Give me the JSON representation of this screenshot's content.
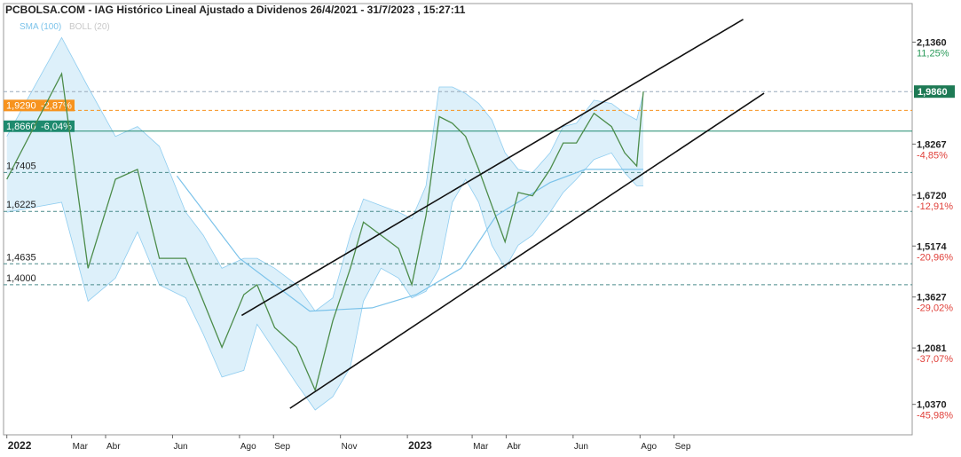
{
  "chart_data": {
    "type": "line",
    "title": "PCBOLSA.COM - IAG Histórico Lineal Ajustado a Dividenos 26/4/2021 - 31/7/2023 , 15:27:11",
    "x": [
      0,
      50,
      74,
      99,
      119,
      139,
      163,
      179,
      196,
      216,
      228,
      244,
      264,
      281,
      297,
      313,
      325,
      341,
      357,
      369,
      382,
      394,
      406,
      418,
      430,
      442,
      454,
      466,
      479,
      495,
      507,
      519,
      535,
      551,
      563,
      574,
      580
    ],
    "series": [
      {
        "color": "#4c8c4a",
        "values": [
          1.72,
          2.04,
          1.45,
          1.72,
          1.75,
          1.48,
          1.48,
          1.35,
          1.21,
          1.37,
          1.4,
          1.27,
          1.21,
          1.08,
          1.29,
          1.45,
          1.59,
          1.55,
          1.51,
          1.4,
          1.61,
          1.91,
          1.89,
          1.85,
          1.75,
          1.64,
          1.53,
          1.68,
          1.67,
          1.75,
          1.83,
          1.83,
          1.92,
          1.88,
          1.8,
          1.76,
          1.986
        ]
      }
    ],
    "bands": {
      "name": "BOLL (20)",
      "color": "#8fcdf0",
      "upper": [
        1.85,
        2.15,
        2.0,
        1.85,
        1.88,
        1.82,
        1.62,
        1.55,
        1.45,
        1.48,
        1.48,
        1.45,
        1.4,
        1.32,
        1.36,
        1.55,
        1.66,
        1.64,
        1.62,
        1.6,
        1.7,
        2.0,
        2.0,
        1.98,
        1.95,
        1.9,
        1.8,
        1.75,
        1.74,
        1.8,
        1.88,
        1.89,
        1.96,
        1.95,
        1.92,
        1.9,
        1.98
      ],
      "lower": [
        1.62,
        1.65,
        1.35,
        1.42,
        1.56,
        1.4,
        1.36,
        1.25,
        1.12,
        1.14,
        1.28,
        1.2,
        1.1,
        1.02,
        1.06,
        1.15,
        1.35,
        1.45,
        1.42,
        1.36,
        1.38,
        1.45,
        1.65,
        1.72,
        1.65,
        1.52,
        1.45,
        1.52,
        1.55,
        1.62,
        1.68,
        1.72,
        1.78,
        1.8,
        1.74,
        1.7,
        1.7
      ]
    },
    "sma": {
      "name": "SMA (100)",
      "color": "#7cc3ea",
      "x": [
        155,
        212,
        276,
        333,
        373,
        414,
        446,
        495,
        527,
        580
      ],
      "values": [
        1.73,
        1.48,
        1.32,
        1.33,
        1.37,
        1.45,
        1.61,
        1.71,
        1.75,
        1.75
      ]
    },
    "trendlines": [
      {
        "x": [
          214,
          671
        ],
        "y": [
          1.307,
          2.205
        ]
      },
      {
        "x": [
          258,
          690
        ],
        "y": [
          1.025,
          1.981
        ]
      }
    ],
    "levels": [
      {
        "value": 1.986,
        "color": "#9ab",
        "style": "dashed"
      },
      {
        "value": 1.929,
        "label": "1,9290",
        "change": "-2,87%",
        "color": "#f7931e",
        "style": "dashed"
      },
      {
        "value": 1.866,
        "label": "1,8660",
        "change": "-6,04%",
        "color": "#1e8a6e",
        "style": "solid"
      },
      {
        "value": 1.7405,
        "label": "1,7405",
        "color": "#4a8a8a",
        "style": "dashed"
      },
      {
        "value": 1.6225,
        "label": "1,6225",
        "color": "#4a8a8a",
        "style": "dashed"
      },
      {
        "value": 1.4635,
        "label": "1,4635",
        "color": "#4a8a8a",
        "style": "dashed"
      },
      {
        "value": 1.4,
        "label": "1,4000",
        "color": "#4a8a8a",
        "style": "dashed"
      }
    ],
    "last": {
      "value": 1.986,
      "label": "1,9860",
      "color": "#1e7a55"
    },
    "xlim": [
      -3,
      825
    ],
    "xticks": [
      {
        "value": 0,
        "label": "2022"
      },
      {
        "value": 59,
        "label": "Mar"
      },
      {
        "value": 90,
        "label": "Abr"
      },
      {
        "value": 151,
        "label": "Jun"
      },
      {
        "value": 212,
        "label": "Ago"
      },
      {
        "value": 243,
        "label": "Sep"
      },
      {
        "value": 304,
        "label": "Nov"
      },
      {
        "value": 365,
        "label": "2023"
      },
      {
        "value": 424,
        "label": "Mar"
      },
      {
        "value": 455,
        "label": "Abr"
      },
      {
        "value": 516,
        "label": "Jun"
      },
      {
        "value": 577,
        "label": "Ago"
      },
      {
        "value": 608,
        "label": "Sep"
      }
    ],
    "ylim": [
      0.95,
      2.21
    ],
    "yticks": [
      {
        "value": 2.136,
        "label": "2,1360",
        "change": "11,25%"
      },
      {
        "value": 1.8267,
        "label": "1,8267",
        "change": "-4,85%"
      },
      {
        "value": 1.672,
        "label": "1,6720",
        "change": "-12,91%"
      },
      {
        "value": 1.5174,
        "label": "1,5174",
        "change": "-20,96%"
      },
      {
        "value": 1.3627,
        "label": "1,3627",
        "change": "-29,02%"
      },
      {
        "value": 1.2081,
        "label": "1,2081",
        "change": "-37,07%"
      },
      {
        "value": 1.037,
        "label": "1,0370",
        "change": "-45,98%"
      }
    ]
  }
}
